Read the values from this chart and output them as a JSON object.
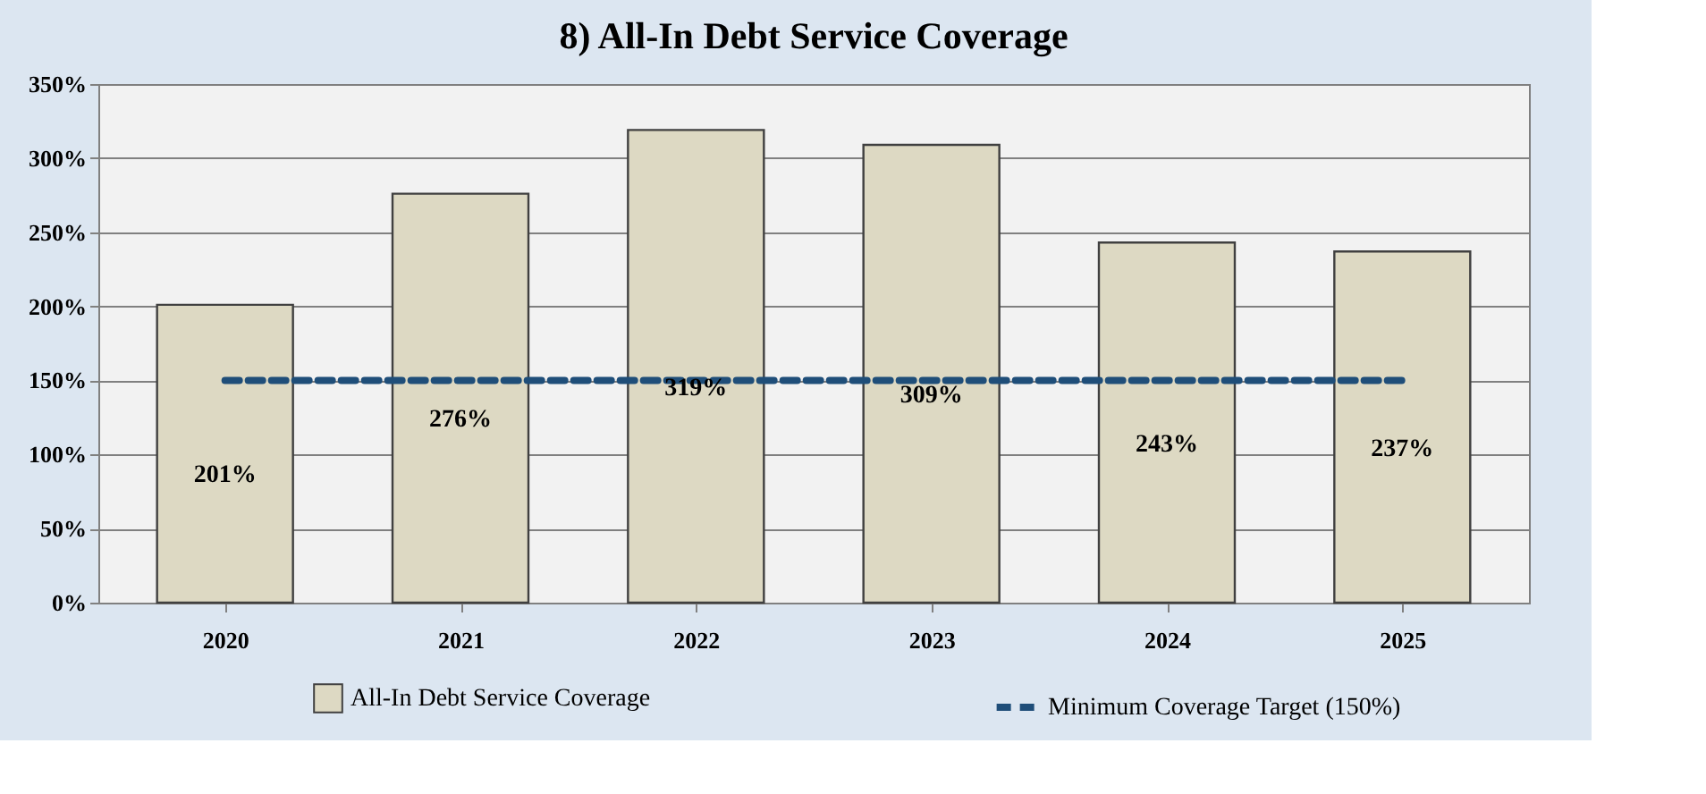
{
  "chart_data": {
    "type": "bar",
    "title": "8) All-In Debt Service Coverage",
    "categories": [
      "2020",
      "2021",
      "2022",
      "2023",
      "2024",
      "2025"
    ],
    "series": [
      {
        "name": "All-In Debt Service Coverage",
        "color": "#ddd9c3",
        "values": [
          201,
          276,
          319,
          309,
          243,
          237
        ]
      },
      {
        "name": "Minimum Coverage Target (150%)",
        "type": "line",
        "color": "#1f4e79",
        "line_style": "dashed",
        "marker": "none",
        "values": [
          150,
          150,
          150,
          150,
          150,
          150
        ]
      }
    ],
    "ylim": [
      0,
      350
    ],
    "yticks": [
      {
        "value": 0,
        "label": "0%"
      },
      {
        "value": 50,
        "label": "50%"
      },
      {
        "value": 100,
        "label": "100%"
      },
      {
        "value": 150,
        "label": "150%"
      },
      {
        "value": 200,
        "label": "200%"
      },
      {
        "value": 250,
        "label": "250%"
      },
      {
        "value": 300,
        "label": "300%"
      },
      {
        "value": 350,
        "label": "350%"
      }
    ],
    "value_labels": [
      "201%",
      "276%",
      "319%",
      "309%",
      "243%",
      "237%"
    ],
    "grid": "y",
    "legend": "bottom"
  }
}
